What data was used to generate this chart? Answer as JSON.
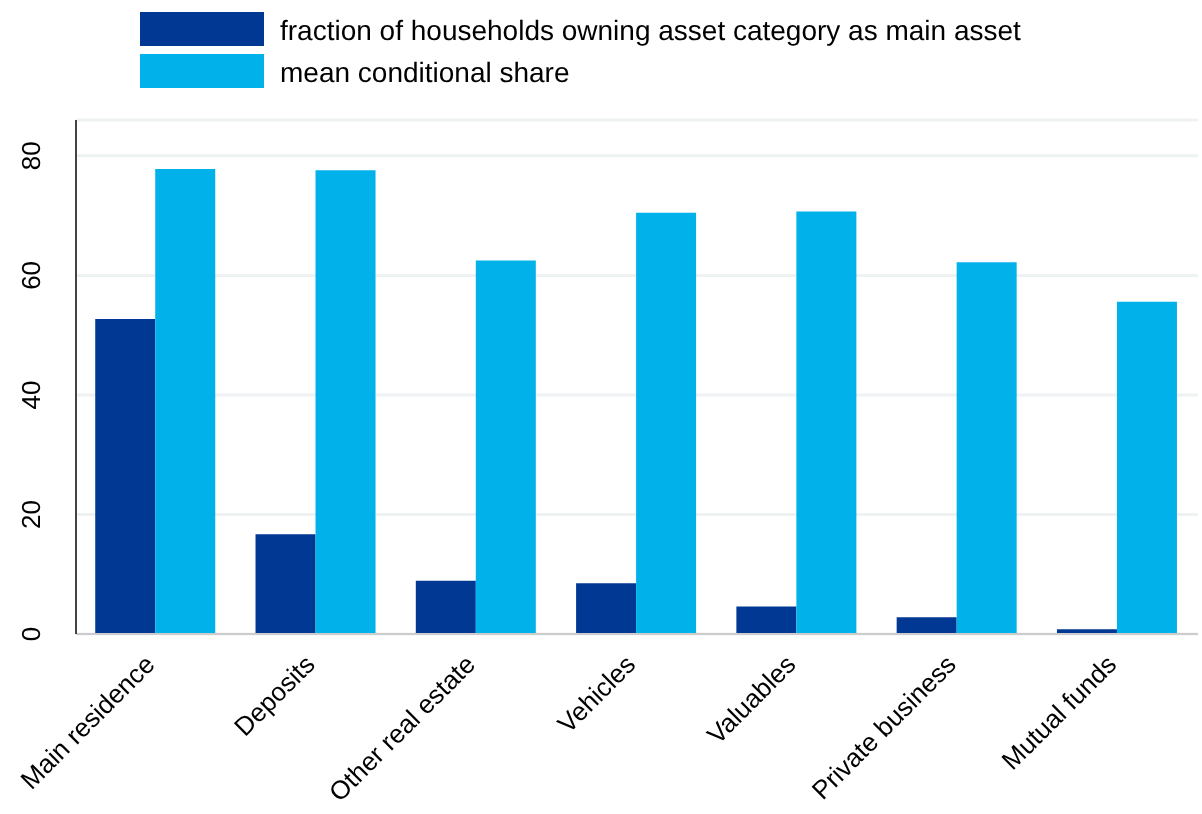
{
  "chart_data": {
    "type": "bar",
    "categories": [
      "Main residence",
      "Deposits",
      "Other real estate",
      "Vehicles",
      "Valuables",
      "Private business",
      "Mutual funds"
    ],
    "series": [
      {
        "name": "fraction of households owning asset category as main asset",
        "color": "#003893",
        "values": [
          52.7,
          16.7,
          8.9,
          8.5,
          4.6,
          2.8,
          0.8
        ]
      },
      {
        "name": "mean conditional share",
        "color": "#00b1ea",
        "values": [
          77.8,
          77.6,
          62.5,
          70.5,
          70.7,
          62.2,
          55.6
        ]
      }
    ],
    "ylim": [
      0,
      86
    ],
    "yticks": [
      0,
      20,
      40,
      60,
      80
    ],
    "grid": "y",
    "legend": "top"
  }
}
